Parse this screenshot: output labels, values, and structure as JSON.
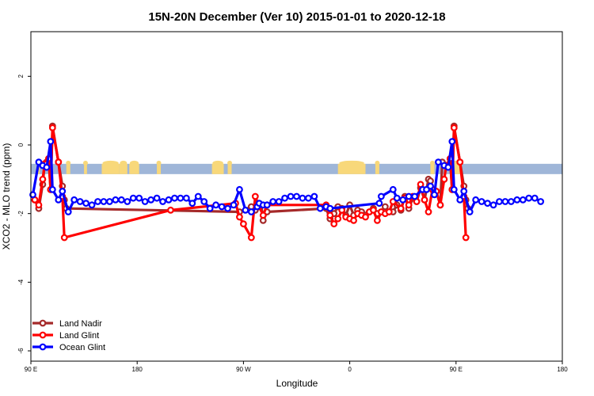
{
  "chart_data": {
    "type": "line",
    "title": "15N-20N December (Ver 10)   2015-01-01 to 2020-12-18",
    "xlabel": "Longitude",
    "ylabel": "XCO2 - MLO trend (ppm)",
    "xlim": [
      -90,
      180
    ],
    "ylim": [
      -6.3,
      3.3
    ],
    "xticks": [
      {
        "value": -90,
        "label": "90 E"
      },
      {
        "value": -36,
        "label": "180"
      },
      {
        "value": 18,
        "label": "90 W"
      },
      {
        "value": 72,
        "label": "0"
      },
      {
        "value": 126,
        "label": "90 E"
      },
      {
        "value": 180,
        "label": "180"
      }
    ],
    "yticks": [
      {
        "value": 2,
        "label": "2"
      },
      {
        "value": 0,
        "label": "0"
      },
      {
        "value": -2,
        "label": "-2"
      },
      {
        "value": -4,
        "label": "-4"
      },
      {
        "value": -6,
        "label": "-6"
      }
    ],
    "grid": false,
    "legend_position": "bottom-left",
    "latitude_band": {
      "y_top": -0.55,
      "y_bottom": -0.85,
      "ocean_color": "#9fb6d8",
      "land_color": "#f8d87a"
    },
    "land_segments": [
      [
        -87,
        -85.5
      ],
      [
        -72,
        -70
      ],
      [
        -63,
        -61.5
      ],
      [
        -54,
        -45
      ],
      [
        -45,
        -41
      ],
      [
        -40,
        -35
      ],
      [
        -26,
        -24
      ],
      [
        2,
        8
      ],
      [
        10,
        12
      ],
      [
        66,
        80
      ],
      [
        85,
        87
      ],
      [
        113,
        115
      ],
      [
        123,
        129
      ]
    ],
    "series": [
      {
        "name": "Land Nadir",
        "color": "#a52a2a",
        "points": [
          [
            -88,
            -1.6
          ],
          [
            -86,
            -1.85
          ],
          [
            -84,
            -1.15
          ],
          [
            -83,
            -0.55
          ],
          [
            -82,
            -0.5
          ],
          [
            -81,
            -0.4
          ],
          [
            -80,
            -1.3
          ],
          [
            -79,
            0.55
          ],
          [
            -76,
            -0.5
          ],
          [
            -74,
            -1.2
          ],
          [
            -73,
            -1.6
          ],
          [
            -72,
            -1.85
          ],
          [
            16,
            -1.95
          ],
          [
            22,
            -1.8
          ],
          [
            24,
            -1.9
          ],
          [
            26,
            -1.75
          ],
          [
            27,
            -1.75
          ],
          [
            28,
            -2.2
          ],
          [
            30,
            -1.95
          ],
          [
            60,
            -1.85
          ],
          [
            62,
            -2.15
          ],
          [
            64,
            -2.0
          ],
          [
            66,
            -1.8
          ],
          [
            68,
            -1.85
          ],
          [
            70,
            -2.05
          ],
          [
            72,
            -1.75
          ],
          [
            74,
            -2.05
          ],
          [
            76,
            -1.9
          ],
          [
            78,
            -1.95
          ],
          [
            80,
            -2.05
          ],
          [
            82,
            -1.95
          ],
          [
            84,
            -1.85
          ],
          [
            86,
            -2.0
          ],
          [
            88,
            -1.95
          ],
          [
            90,
            -1.8
          ],
          [
            92,
            -1.95
          ],
          [
            94,
            -1.95
          ],
          [
            96,
            -1.75
          ],
          [
            98,
            -1.9
          ],
          [
            100,
            -1.5
          ],
          [
            102,
            -1.85
          ],
          [
            104,
            -1.55
          ],
          [
            106,
            -1.65
          ],
          [
            108,
            -1.25
          ],
          [
            110,
            -1.6
          ],
          [
            112,
            -1.0
          ],
          [
            113,
            -1.05
          ],
          [
            114,
            -1.3
          ],
          [
            116,
            -1.35
          ],
          [
            118,
            -1.75
          ],
          [
            119,
            -0.5
          ],
          [
            121,
            -0.6
          ],
          [
            123,
            -0.4
          ],
          [
            124,
            -1.3
          ],
          [
            125,
            0.55
          ],
          [
            128,
            -0.5
          ],
          [
            130,
            -1.2
          ],
          [
            131,
            -1.6
          ],
          [
            132,
            -1.85
          ]
        ]
      },
      {
        "name": "Land Glint",
        "color": "#ff0000",
        "points": [
          [
            -88,
            -1.6
          ],
          [
            -86,
            -1.75
          ],
          [
            -84,
            -1.0
          ],
          [
            -83,
            -0.55
          ],
          [
            -82,
            -0.55
          ],
          [
            -81,
            -0.4
          ],
          [
            -80,
            -1.3
          ],
          [
            -79,
            0.5
          ],
          [
            -76,
            -0.5
          ],
          [
            -74,
            -1.5
          ],
          [
            -73,
            -2.7
          ],
          [
            -19,
            -1.9
          ],
          [
            14,
            -1.7
          ],
          [
            16,
            -2.1
          ],
          [
            18,
            -2.3
          ],
          [
            22,
            -2.7
          ],
          [
            24,
            -1.5
          ],
          [
            26,
            -1.8
          ],
          [
            28,
            -2.05
          ],
          [
            30,
            -1.75
          ],
          [
            60,
            -1.75
          ],
          [
            62,
            -2.05
          ],
          [
            64,
            -2.3
          ],
          [
            66,
            -2.15
          ],
          [
            68,
            -1.9
          ],
          [
            70,
            -2.1
          ],
          [
            72,
            -2.15
          ],
          [
            74,
            -2.2
          ],
          [
            76,
            -2.0
          ],
          [
            78,
            -2.05
          ],
          [
            80,
            -2.1
          ],
          [
            82,
            -1.95
          ],
          [
            84,
            -1.9
          ],
          [
            86,
            -2.2
          ],
          [
            88,
            -1.95
          ],
          [
            90,
            -2.0
          ],
          [
            92,
            -1.95
          ],
          [
            94,
            -1.65
          ],
          [
            98,
            -1.85
          ],
          [
            100,
            -1.55
          ],
          [
            102,
            -1.75
          ],
          [
            104,
            -1.5
          ],
          [
            106,
            -1.65
          ],
          [
            108,
            -1.15
          ],
          [
            110,
            -1.6
          ],
          [
            112,
            -1.95
          ],
          [
            114,
            -1.3
          ],
          [
            116,
            -1.35
          ],
          [
            118,
            -1.75
          ],
          [
            120,
            -1.0
          ],
          [
            121,
            -0.6
          ],
          [
            123,
            -0.4
          ],
          [
            124,
            -1.3
          ],
          [
            125,
            0.5
          ],
          [
            128,
            -0.5
          ],
          [
            130,
            -1.5
          ],
          [
            131,
            -2.7
          ]
        ]
      },
      {
        "name": "Ocean Glint",
        "color": "#0000ff",
        "points": [
          [
            -89,
            -1.45
          ],
          [
            -86,
            -0.5
          ],
          [
            -84,
            -0.6
          ],
          [
            -82,
            -0.65
          ],
          [
            -80,
            0.1
          ],
          [
            -79,
            -1.3
          ],
          [
            -76,
            -1.6
          ],
          [
            -74,
            -1.35
          ],
          [
            -71,
            -1.95
          ],
          [
            -68,
            -1.6
          ],
          [
            -65,
            -1.65
          ],
          [
            -62,
            -1.7
          ],
          [
            -59,
            -1.75
          ],
          [
            -56,
            -1.65
          ],
          [
            -53,
            -1.65
          ],
          [
            -50,
            -1.65
          ],
          [
            -47,
            -1.6
          ],
          [
            -44,
            -1.6
          ],
          [
            -41,
            -1.65
          ],
          [
            -38,
            -1.55
          ],
          [
            -35,
            -1.55
          ],
          [
            -32,
            -1.65
          ],
          [
            -29,
            -1.6
          ],
          [
            -26,
            -1.55
          ],
          [
            -23,
            -1.65
          ],
          [
            -20,
            -1.6
          ],
          [
            -17,
            -1.55
          ],
          [
            -14,
            -1.55
          ],
          [
            -11,
            -1.55
          ],
          [
            -8,
            -1.7
          ],
          [
            -5,
            -1.5
          ],
          [
            -2,
            -1.65
          ],
          [
            1,
            -1.85
          ],
          [
            4,
            -1.75
          ],
          [
            7,
            -1.8
          ],
          [
            10,
            -1.85
          ],
          [
            13,
            -1.75
          ],
          [
            16,
            -1.3
          ],
          [
            19,
            -1.9
          ],
          [
            22,
            -1.95
          ],
          [
            25,
            -1.8
          ],
          [
            26,
            -1.7
          ],
          [
            28,
            -1.75
          ],
          [
            30,
            -1.75
          ],
          [
            33,
            -1.65
          ],
          [
            36,
            -1.65
          ],
          [
            39,
            -1.55
          ],
          [
            42,
            -1.5
          ],
          [
            45,
            -1.5
          ],
          [
            48,
            -1.55
          ],
          [
            51,
            -1.55
          ],
          [
            54,
            -1.5
          ],
          [
            57,
            -1.85
          ],
          [
            60,
            -1.8
          ],
          [
            62,
            -1.85
          ],
          [
            87,
            -1.7
          ],
          [
            88,
            -1.5
          ],
          [
            94,
            -1.3
          ],
          [
            96,
            -1.55
          ],
          [
            99,
            -1.6
          ],
          [
            102,
            -1.5
          ],
          [
            105,
            -1.5
          ],
          [
            109,
            -1.3
          ],
          [
            111,
            -1.3
          ],
          [
            113,
            -1.2
          ],
          [
            115,
            -1.45
          ],
          [
            117,
            -0.5
          ],
          [
            120,
            -0.6
          ],
          [
            122,
            -0.65
          ],
          [
            124,
            0.1
          ],
          [
            125,
            -1.3
          ],
          [
            128,
            -1.6
          ],
          [
            130,
            -1.35
          ],
          [
            133,
            -1.95
          ],
          [
            136,
            -1.6
          ],
          [
            139,
            -1.65
          ],
          [
            142,
            -1.7
          ],
          [
            145,
            -1.75
          ],
          [
            148,
            -1.65
          ],
          [
            151,
            -1.65
          ],
          [
            154,
            -1.65
          ],
          [
            157,
            -1.6
          ],
          [
            160,
            -1.6
          ],
          [
            163,
            -1.55
          ],
          [
            166,
            -1.55
          ],
          [
            169,
            -1.65
          ]
        ]
      }
    ]
  }
}
